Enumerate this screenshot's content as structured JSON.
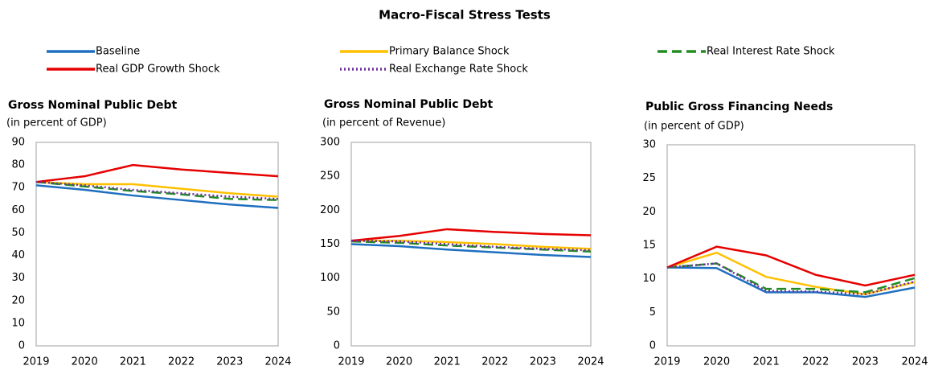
{
  "title": "Macro-Fiscal Stress Tests",
  "chart_data": [
    {
      "type": "line",
      "title": "Gross Nominal Public Debt",
      "subtitle": "(in percent of GDP)",
      "categories": [
        "2019",
        "2020",
        "2021",
        "2022",
        "2023",
        "2024"
      ],
      "ylim": [
        0,
        90
      ],
      "yticks": [
        0,
        10,
        20,
        30,
        40,
        50,
        60,
        70,
        80,
        90
      ],
      "series": [
        {
          "name": "Baseline",
          "color": "#1f6fc0",
          "dash": "solid",
          "values": [
            71,
            69,
            66.5,
            64.5,
            62.5,
            61
          ]
        },
        {
          "name": "Primary Balance Shock",
          "color": "#ffc000",
          "dash": "solid",
          "values": [
            72.5,
            71.5,
            71.5,
            69.5,
            67.5,
            66
          ]
        },
        {
          "name": "Real Interest Rate Shock",
          "color": "#228b22",
          "dash": "dashed",
          "values": [
            72.5,
            70.5,
            68.5,
            67,
            65,
            64.5
          ]
        },
        {
          "name": "Real GDP Growth Shock",
          "color": "#e60000",
          "dash": "solid",
          "values": [
            72.5,
            75,
            80,
            78,
            76.5,
            75
          ]
        },
        {
          "name": "Real Exchange Rate Shock",
          "color": "#7030a0",
          "dash": "dotted",
          "values": [
            72.5,
            71,
            69,
            67.5,
            66,
            65
          ]
        }
      ]
    },
    {
      "type": "line",
      "title": "Gross Nominal Public Debt",
      "subtitle": "(in percent of Revenue)",
      "categories": [
        "2019",
        "2020",
        "2021",
        "2022",
        "2023",
        "2024"
      ],
      "ylim": [
        0,
        300
      ],
      "yticks": [
        0,
        50,
        100,
        150,
        200,
        250,
        300
      ],
      "series": [
        {
          "name": "Baseline",
          "color": "#1f6fc0",
          "dash": "solid",
          "values": [
            150,
            147,
            142,
            138,
            134,
            131
          ]
        },
        {
          "name": "Primary Balance Shock",
          "color": "#ffc000",
          "dash": "solid",
          "values": [
            155,
            155,
            153,
            150,
            146,
            143
          ]
        },
        {
          "name": "Real Interest Rate Shock",
          "color": "#228b22",
          "dash": "dashed",
          "values": [
            154,
            152,
            148,
            145,
            142,
            139
          ]
        },
        {
          "name": "Real GDP Growth Shock",
          "color": "#e60000",
          "dash": "solid",
          "values": [
            155,
            162,
            172,
            168,
            165,
            163
          ]
        },
        {
          "name": "Real Exchange Rate Shock",
          "color": "#7030a0",
          "dash": "dotted",
          "values": [
            155,
            154,
            150,
            146,
            143,
            141
          ]
        }
      ]
    },
    {
      "type": "line",
      "title": "Public Gross Financing Needs",
      "subtitle": "(in percent of GDP)",
      "categories": [
        "2019",
        "2020",
        "2021",
        "2022",
        "2023",
        "2024"
      ],
      "ylim": [
        0,
        30
      ],
      "yticks": [
        0,
        5,
        10,
        15,
        20,
        25,
        30
      ],
      "series": [
        {
          "name": "Baseline",
          "color": "#1f6fc0",
          "dash": "solid",
          "values": [
            11.7,
            11.6,
            8,
            8,
            7.3,
            8.7
          ]
        },
        {
          "name": "Primary Balance Shock",
          "color": "#ffc000",
          "dash": "solid",
          "values": [
            11.7,
            13.9,
            10.3,
            8.8,
            7.7,
            9.5
          ]
        },
        {
          "name": "Real Interest Rate Shock",
          "color": "#228b22",
          "dash": "dashed",
          "values": [
            11.7,
            12.3,
            8.5,
            8.5,
            8,
            10.1
          ]
        },
        {
          "name": "Real GDP Growth Shock",
          "color": "#e60000",
          "dash": "solid",
          "values": [
            11.7,
            14.8,
            13.5,
            10.6,
            9,
            10.6
          ]
        },
        {
          "name": "Real Exchange Rate Shock",
          "color": "#7030a0",
          "dash": "dotted",
          "values": [
            11.7,
            12.3,
            8.2,
            8.1,
            7.7,
            9.6
          ]
        }
      ]
    }
  ]
}
